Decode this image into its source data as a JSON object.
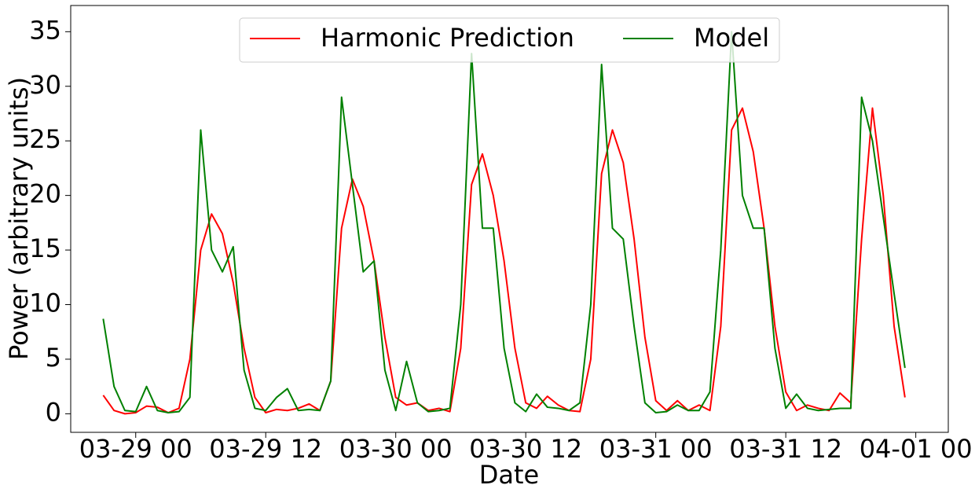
{
  "chart_data": {
    "type": "line",
    "xlabel": "Date",
    "ylabel": "Power (arbitrary units)",
    "x": [
      "03-28 21",
      "03-28 22",
      "03-28 23",
      "03-29 00",
      "03-29 01",
      "03-29 02",
      "03-29 03",
      "03-29 04",
      "03-29 05",
      "03-29 06",
      "03-29 07",
      "03-29 08",
      "03-29 09",
      "03-29 10",
      "03-29 11",
      "03-29 12",
      "03-29 13",
      "03-29 14",
      "03-29 15",
      "03-29 16",
      "03-29 17",
      "03-29 18",
      "03-29 19",
      "03-29 20",
      "03-29 21",
      "03-29 22",
      "03-29 23",
      "03-30 00",
      "03-30 01",
      "03-30 02",
      "03-30 03",
      "03-30 04",
      "03-30 05",
      "03-30 06",
      "03-30 07",
      "03-30 08",
      "03-30 09",
      "03-30 10",
      "03-30 11",
      "03-30 12",
      "03-30 13",
      "03-30 14",
      "03-30 15",
      "03-30 16",
      "03-30 17",
      "03-30 18",
      "03-30 19",
      "03-30 20",
      "03-30 21",
      "03-30 22",
      "03-30 23",
      "03-31 00",
      "03-31 01",
      "03-31 02",
      "03-31 03",
      "03-31 04",
      "03-31 05",
      "03-31 06",
      "03-31 07",
      "03-31 08",
      "03-31 09",
      "03-31 10",
      "03-31 11",
      "03-31 12",
      "03-31 13",
      "03-31 14",
      "03-31 15",
      "03-31 16",
      "03-31 17",
      "03-31 18",
      "03-31 19",
      "03-31 20",
      "03-31 21",
      "03-31 22",
      "03-31 23"
    ],
    "series": [
      {
        "name": "Harmonic Prediction",
        "color": "#ff0000",
        "values": [
          1.7,
          0.3,
          0.0,
          0.1,
          0.7,
          0.6,
          0.1,
          0.5,
          5,
          15,
          18.3,
          16.5,
          12,
          6,
          1.5,
          0.1,
          0.4,
          0.3,
          0.5,
          0.9,
          0.3,
          3,
          17,
          21.5,
          19,
          14,
          7,
          1.5,
          0.8,
          1.0,
          0.3,
          0.5,
          0.2,
          6,
          21,
          23.8,
          20,
          14,
          6,
          1.0,
          0.5,
          1.6,
          0.8,
          0.3,
          0.2,
          5,
          22,
          26,
          23,
          16,
          7,
          1.2,
          0.3,
          1.2,
          0.3,
          0.8,
          0.3,
          8,
          26,
          28,
          24,
          17,
          8,
          2.0,
          0.3,
          0.8,
          0.5,
          0.3,
          1.9,
          1.0,
          16,
          28,
          20,
          8,
          1.5
        ]
      },
      {
        "name": "Model",
        "color": "#008000",
        "values": [
          8.7,
          2.5,
          0.3,
          0.2,
          2.5,
          0.3,
          0.1,
          0.2,
          1.5,
          26,
          15,
          13,
          15.3,
          4,
          0.5,
          0.3,
          1.5,
          2.3,
          0.3,
          0.4,
          0.3,
          3,
          29,
          21,
          13,
          14,
          4,
          0.3,
          4.8,
          1.0,
          0.2,
          0.3,
          0.5,
          10,
          33,
          17,
          17,
          6,
          1.0,
          0.2,
          1.8,
          0.6,
          0.5,
          0.3,
          1.0,
          10,
          32,
          17,
          16,
          8,
          1.0,
          0.1,
          0.2,
          0.8,
          0.3,
          0.3,
          2.0,
          15,
          35,
          20,
          17,
          17,
          6,
          0.5,
          1.8,
          0.5,
          0.3,
          0.4,
          0.5,
          0.5,
          29,
          25,
          18,
          11,
          4.2
        ]
      }
    ],
    "xlim": [
      "03-28 18",
      "04-01 03"
    ],
    "xticks": [
      "03-29 00",
      "03-29 12",
      "03-30 00",
      "03-30 12",
      "03-31 00",
      "03-31 12",
      "04-01 00"
    ],
    "ylim": [
      -1.7,
      37.4
    ],
    "yticks": [
      0,
      5,
      10,
      15,
      20,
      25,
      30,
      35
    ],
    "grid": false,
    "legend": "upper center"
  }
}
